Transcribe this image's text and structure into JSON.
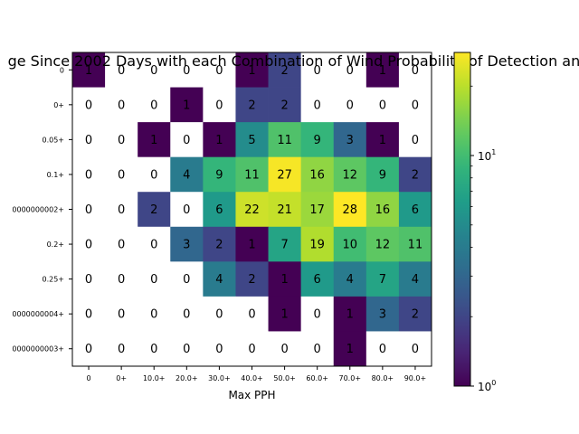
{
  "chart_data": {
    "type": "heatmap",
    "title": "ge Since 2002 Days with each Combination of Wind Probability of Detection and",
    "xlabel": "Max PPH",
    "ylabel": "",
    "x_categories": [
      "0",
      "0+",
      "10.0+",
      "20.0+",
      "30.0+",
      "40.0+",
      "50.0+",
      "60.0+",
      "70.0+",
      "80.0+",
      "90.0+"
    ],
    "y_categories": [
      "0",
      "0+",
      "0.05+",
      "0.1+",
      "0000000002+",
      "0.2+",
      "0.25+",
      "0000000004+",
      "0000000003+"
    ],
    "values": [
      [
        1,
        0,
        0,
        0,
        0,
        1,
        2,
        0,
        0,
        1,
        0
      ],
      [
        0,
        0,
        0,
        1,
        0,
        2,
        2,
        0,
        0,
        0,
        0
      ],
      [
        0,
        0,
        1,
        0,
        1,
        5,
        11,
        9,
        3,
        1,
        0
      ],
      [
        0,
        0,
        0,
        4,
        9,
        11,
        27,
        16,
        12,
        9,
        2
      ],
      [
        0,
        0,
        2,
        0,
        6,
        22,
        21,
        17,
        28,
        16,
        6
      ],
      [
        0,
        0,
        0,
        3,
        2,
        1,
        7,
        19,
        10,
        12,
        11
      ],
      [
        0,
        0,
        0,
        0,
        4,
        2,
        1,
        6,
        4,
        7,
        4
      ],
      [
        0,
        0,
        0,
        0,
        0,
        0,
        1,
        0,
        1,
        3,
        2
      ],
      [
        0,
        0,
        0,
        0,
        0,
        0,
        0,
        0,
        1,
        0,
        0
      ]
    ],
    "color_scale": "log",
    "colormap": "viridis",
    "zero_color": "#ffffff",
    "colorbar_range": [
      1,
      28
    ],
    "colorbar_ticks": [
      {
        "value": 1,
        "base": "10",
        "exp": "0"
      },
      {
        "value": 10,
        "base": "10",
        "exp": "1"
      }
    ],
    "grid": false
  }
}
